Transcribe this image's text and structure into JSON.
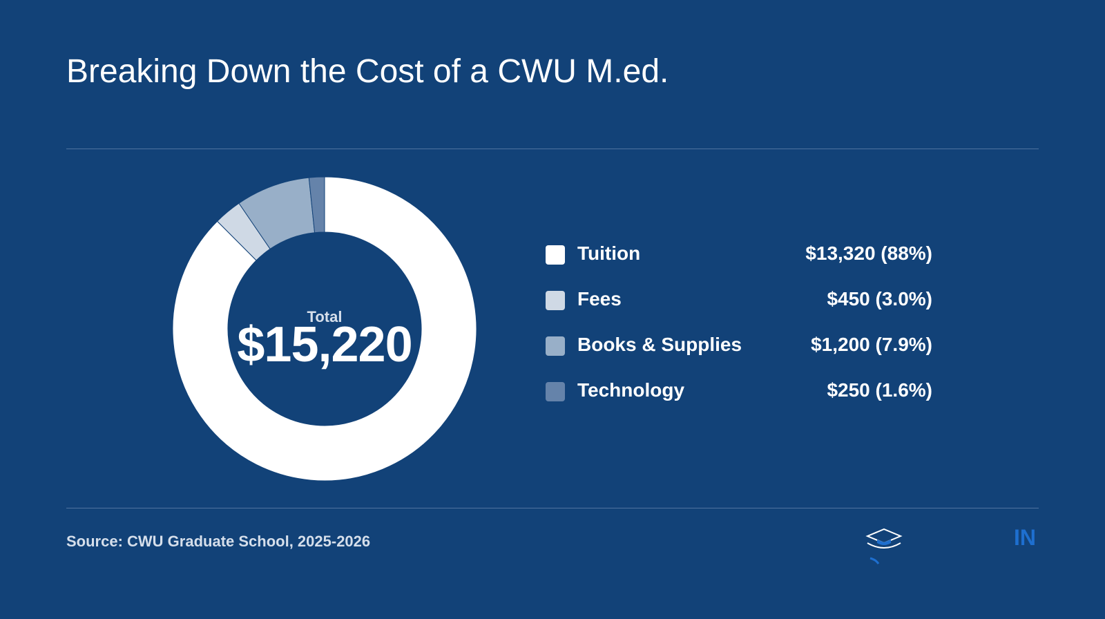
{
  "title": "Breaking Down the Cost of a CWU M.ed.",
  "center": {
    "label": "Total",
    "value": "$15,220"
  },
  "chart_data": {
    "type": "pie",
    "title": "Breaking Down the Cost of a CWU M.ed.",
    "categories": [
      "Tuition",
      "Fees",
      "Books & Supplies",
      "Technology"
    ],
    "values": [
      13320,
      450,
      1200,
      250
    ],
    "total": 15220,
    "colors": [
      "#ffffff",
      "#cfd9e5",
      "#98afc8",
      "#6583aa"
    ]
  },
  "legend": [
    {
      "label": "Tuition",
      "value": "$13,320 (88%)",
      "color": "#ffffff"
    },
    {
      "label": "Fees",
      "value": "$450 (3.0%)",
      "color": "#cfd9e5"
    },
    {
      "label": "Books & Supplies",
      "value": "$1,200 (7.9%)",
      "color": "#98afc8"
    },
    {
      "label": "Technology",
      "value": "$250 (1.6%)",
      "color": "#6583aa"
    }
  ],
  "source": "Source: CWU Graduate School, 2025-2026",
  "logo": {
    "text": "IN",
    "icon": "graduation-cap-icon"
  },
  "colors": {
    "background": "#124278",
    "accent": "#1e6fcf"
  }
}
